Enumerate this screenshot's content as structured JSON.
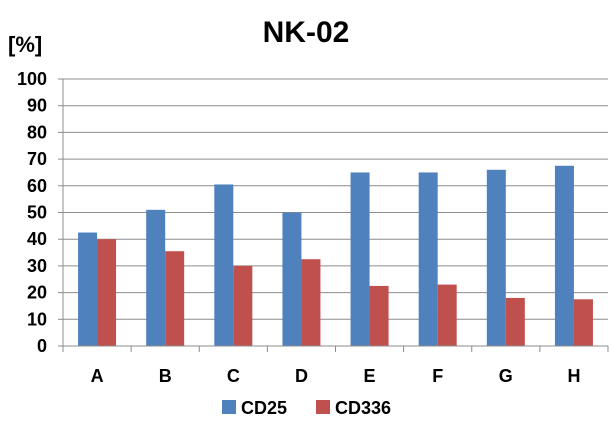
{
  "chart_data": {
    "type": "bar",
    "title": "NK-02",
    "ylabel": "[%]",
    "xlabel": "",
    "categories": [
      "A",
      "B",
      "C",
      "D",
      "E",
      "F",
      "G",
      "H"
    ],
    "series": [
      {
        "name": "CD25",
        "color": "#4f81bd",
        "values": [
          42.5,
          51,
          60.5,
          50,
          65,
          65,
          66,
          67.5
        ]
      },
      {
        "name": "CD336",
        "color": "#c0504d",
        "values": [
          40,
          35.5,
          30,
          32.5,
          22.5,
          23,
          18,
          17.5
        ]
      }
    ],
    "ylim": [
      0,
      100
    ],
    "yticks": [
      0,
      10,
      20,
      30,
      40,
      50,
      60,
      70,
      80,
      90,
      100
    ],
    "grid": true,
    "legend_position": "bottom"
  }
}
